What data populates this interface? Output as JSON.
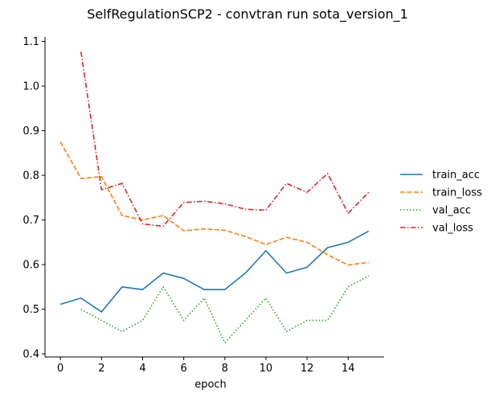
{
  "chart_data": {
    "type": "line",
    "title": "SelfRegulationSCP2 - convtran run sota_version_1",
    "xlabel": "epoch",
    "ylabel": "",
    "xlim": [
      -0.75,
      15.75
    ],
    "ylim": [
      0.393,
      1.11
    ],
    "xticks": [
      0,
      2,
      4,
      6,
      8,
      10,
      12,
      14
    ],
    "yticks": [
      0.4,
      0.5,
      0.6,
      0.7,
      0.8,
      0.9,
      1.0,
      1.1
    ],
    "ytick_labels": [
      "0.4",
      "0.5",
      "0.6",
      "0.7",
      "0.8",
      "0.9",
      "1.0",
      "1.1"
    ],
    "grid": false,
    "legend_position": "right",
    "series": [
      {
        "name": "train_acc",
        "color": "#1f77b4",
        "dash": "solid",
        "x": [
          0,
          1,
          2,
          3,
          4,
          5,
          6,
          7,
          8,
          9,
          10,
          11,
          12,
          13,
          14,
          15
        ],
        "y": [
          0.511,
          0.525,
          0.494,
          0.55,
          0.544,
          0.581,
          0.569,
          0.544,
          0.544,
          0.581,
          0.631,
          0.581,
          0.594,
          0.638,
          0.65,
          0.675
        ]
      },
      {
        "name": "train_loss",
        "color": "#ff7f0e",
        "dash": "dashed",
        "x": [
          0,
          1,
          2,
          3,
          4,
          5,
          6,
          7,
          8,
          9,
          10,
          11,
          12,
          13,
          14,
          15
        ],
        "y": [
          0.875,
          0.793,
          0.797,
          0.71,
          0.7,
          0.71,
          0.676,
          0.68,
          0.677,
          0.663,
          0.645,
          0.661,
          0.65,
          0.622,
          0.599,
          0.605
        ]
      },
      {
        "name": "val_acc",
        "color": "#2ca02c",
        "dash": "dotted",
        "x": [
          1,
          2,
          3,
          4,
          5,
          6,
          7,
          8,
          9,
          10,
          11,
          12,
          13,
          14,
          15
        ],
        "y": [
          0.5,
          0.475,
          0.45,
          0.475,
          0.55,
          0.475,
          0.525,
          0.425,
          0.475,
          0.525,
          0.45,
          0.475,
          0.475,
          0.55,
          0.575
        ]
      },
      {
        "name": "val_loss",
        "color": "#d62728",
        "dash": "dashdot",
        "x": [
          1,
          2,
          3,
          4,
          5,
          6,
          7,
          8,
          9,
          10,
          11,
          12,
          13,
          14,
          15
        ],
        "y": [
          1.077,
          0.768,
          0.782,
          0.691,
          0.686,
          0.739,
          0.742,
          0.736,
          0.724,
          0.722,
          0.782,
          0.762,
          0.804,
          0.715,
          0.762
        ]
      }
    ]
  }
}
